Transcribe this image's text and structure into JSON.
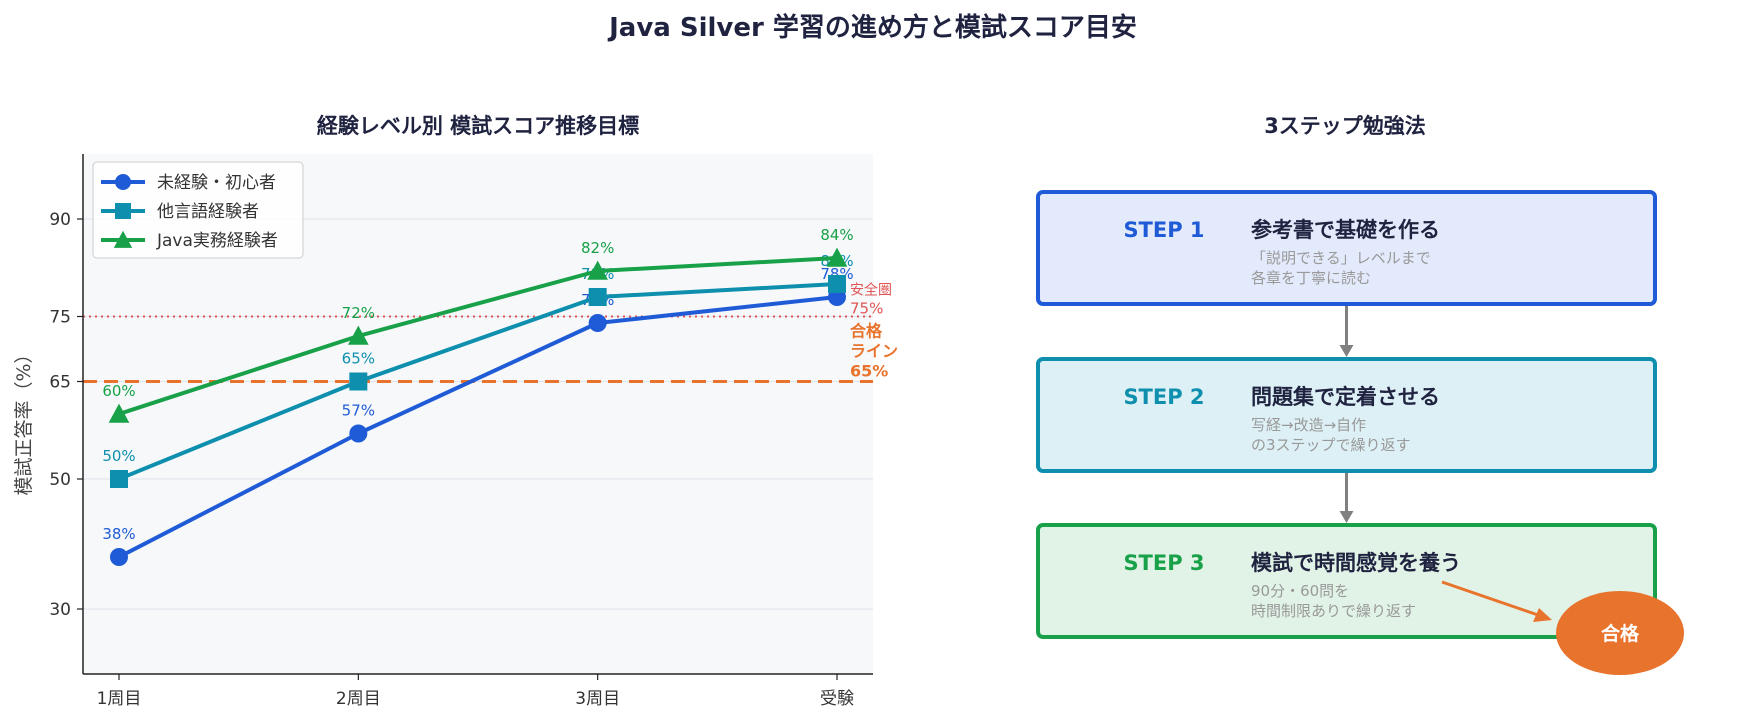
{
  "title": "Java Silver 学習の進め方と模試スコア目安",
  "chart_data": {
    "type": "line",
    "title": "経験レベル別 模試スコア推移目標",
    "xlabel": "",
    "ylabel": "模試正答率（%）",
    "categories": [
      "1周目",
      "2周目",
      "3周目",
      "受験"
    ],
    "yticks": [
      30,
      50,
      65,
      75,
      90
    ],
    "ylim": [
      20,
      100
    ],
    "grid": true,
    "legend_position": "top-left",
    "series": [
      {
        "name": "未経験・初心者",
        "values": [
          38,
          57,
          74,
          78
        ],
        "labels": [
          "38%",
          "57%",
          "74%",
          "78%"
        ],
        "color": "#1f5bd6",
        "marker": "circle"
      },
      {
        "name": "他言語経験者",
        "values": [
          50,
          65,
          78,
          80
        ],
        "labels": [
          "50%",
          "65%",
          "78%",
          "80%"
        ],
        "color": "#0e8fad",
        "marker": "square"
      },
      {
        "name": "Java実務経験者",
        "values": [
          60,
          72,
          82,
          84
        ],
        "labels": [
          "60%",
          "72%",
          "82%",
          "84%"
        ],
        "color": "#18a148",
        "marker": "triangle"
      }
    ],
    "reference_lines": [
      {
        "value": 75,
        "label_top": "安全圏",
        "label_bottom": "75%",
        "color": "#e05555",
        "style": "dotted"
      },
      {
        "value": 65,
        "label_lines": [
          "合格",
          "ライン",
          "65%"
        ],
        "color": "#e8732c",
        "style": "dashed"
      }
    ]
  },
  "steps": {
    "title": "3ステップ勉強法",
    "items": [
      {
        "label": "STEP 1",
        "title": "参考書で基礎を作る",
        "desc": [
          "「説明できる」レベルまで",
          "各章を丁寧に読む"
        ],
        "border": "#1f5bd6",
        "fill": "#e3eafb"
      },
      {
        "label": "STEP 2",
        "title": "問題集で定着させる",
        "desc": [
          "写経→改造→自作",
          "の3ステップで繰り返す"
        ],
        "border": "#0e8fad",
        "fill": "#ddf0f5"
      },
      {
        "label": "STEP 3",
        "title": "模試で時間感覚を養う",
        "desc": [
          "90分・60問を",
          "時間制限ありで繰り返す"
        ],
        "border": "#18a148",
        "fill": "#e1f3e6"
      }
    ],
    "badge": {
      "text": "合格",
      "color": "#e8732c"
    }
  }
}
